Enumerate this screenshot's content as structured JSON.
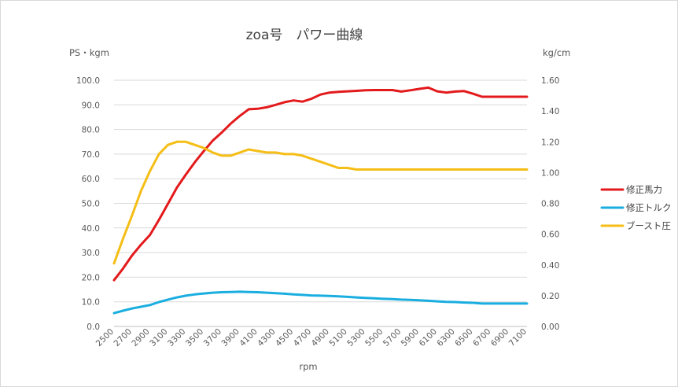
{
  "chart_data": {
    "type": "line",
    "title": "zoa号　パワー曲線",
    "xlabel": "rpm",
    "ylabel_left": "PS・kgm",
    "ylabel_right": "kg/cm",
    "x": [
      2500,
      2600,
      2700,
      2800,
      2900,
      3000,
      3100,
      3200,
      3300,
      3400,
      3500,
      3600,
      3700,
      3800,
      3900,
      4000,
      4100,
      4200,
      4300,
      4400,
      4500,
      4600,
      4700,
      4800,
      4900,
      5000,
      5100,
      5200,
      5300,
      5400,
      5500,
      5600,
      5700,
      5800,
      5900,
      6000,
      6100,
      6200,
      6300,
      6400,
      6500,
      6600,
      6700,
      6800,
      6900,
      7000,
      7100
    ],
    "x_tick_labels": [
      "2500",
      "2700",
      "2900",
      "3100",
      "3300",
      "3500",
      "3700",
      "3900",
      "4100",
      "4300",
      "4500",
      "4700",
      "4900",
      "5100",
      "5300",
      "5500",
      "5700",
      "5900",
      "6100",
      "6300",
      "6500",
      "6700",
      "6900",
      "7100"
    ],
    "ylim_left": [
      0,
      100
    ],
    "y_ticks_left": [
      "0.0",
      "10.0",
      "20.0",
      "30.0",
      "40.0",
      "50.0",
      "60.0",
      "70.0",
      "80.0",
      "90.0",
      "100.0"
    ],
    "ylim_right": [
      0,
      1.6
    ],
    "y_ticks_right": [
      "0.00",
      "0.20",
      "0.40",
      "0.60",
      "0.80",
      "1.00",
      "1.20",
      "1.40",
      "1.60"
    ],
    "grid": true,
    "legend_position": "right",
    "series": [
      {
        "name": "修正馬力",
        "axis": "left",
        "color": "#e31a1c",
        "values": [
          18.8,
          23.5,
          28.8,
          33.2,
          37.2,
          43.3,
          49.8,
          56.4,
          61.7,
          66.7,
          71.2,
          75.5,
          78.8,
          82.4,
          85.5,
          88.2,
          88.4,
          89.0,
          90.0,
          91.1,
          91.8,
          91.3,
          92.5,
          94.2,
          95.0,
          95.3,
          95.5,
          95.7,
          95.9,
          96.0,
          96.0,
          96.0,
          95.4,
          95.9,
          96.5,
          97.0,
          95.5,
          95.0,
          95.4,
          95.6,
          94.5,
          93.3,
          93.3,
          93.3,
          93.3,
          93.3,
          93.3
        ]
      },
      {
        "name": "修正トルク",
        "axis": "left",
        "color": "#1aaee0",
        "values": [
          5.4,
          6.4,
          7.3,
          8.0,
          8.7,
          9.9,
          10.9,
          11.8,
          12.5,
          13.0,
          13.4,
          13.7,
          13.9,
          14.0,
          14.1,
          14.0,
          13.9,
          13.7,
          13.5,
          13.3,
          13.0,
          12.8,
          12.6,
          12.5,
          12.4,
          12.2,
          12.0,
          11.8,
          11.6,
          11.4,
          11.2,
          11.1,
          10.9,
          10.8,
          10.6,
          10.4,
          10.2,
          10.0,
          9.9,
          9.7,
          9.6,
          9.3,
          9.3,
          9.3,
          9.3,
          9.3,
          9.3
        ]
      },
      {
        "name": "ブースト圧",
        "axis": "right",
        "color": "#f5be16",
        "values": [
          0.41,
          0.57,
          0.72,
          0.88,
          1.01,
          1.12,
          1.18,
          1.2,
          1.2,
          1.18,
          1.16,
          1.13,
          1.11,
          1.11,
          1.13,
          1.15,
          1.14,
          1.13,
          1.13,
          1.12,
          1.12,
          1.11,
          1.09,
          1.07,
          1.05,
          1.03,
          1.03,
          1.02,
          1.02,
          1.02,
          1.02,
          1.02,
          1.02,
          1.02,
          1.02,
          1.02,
          1.02,
          1.02,
          1.02,
          1.02,
          1.02,
          1.02,
          1.02,
          1.02,
          1.02,
          1.02,
          1.02
        ]
      }
    ]
  }
}
